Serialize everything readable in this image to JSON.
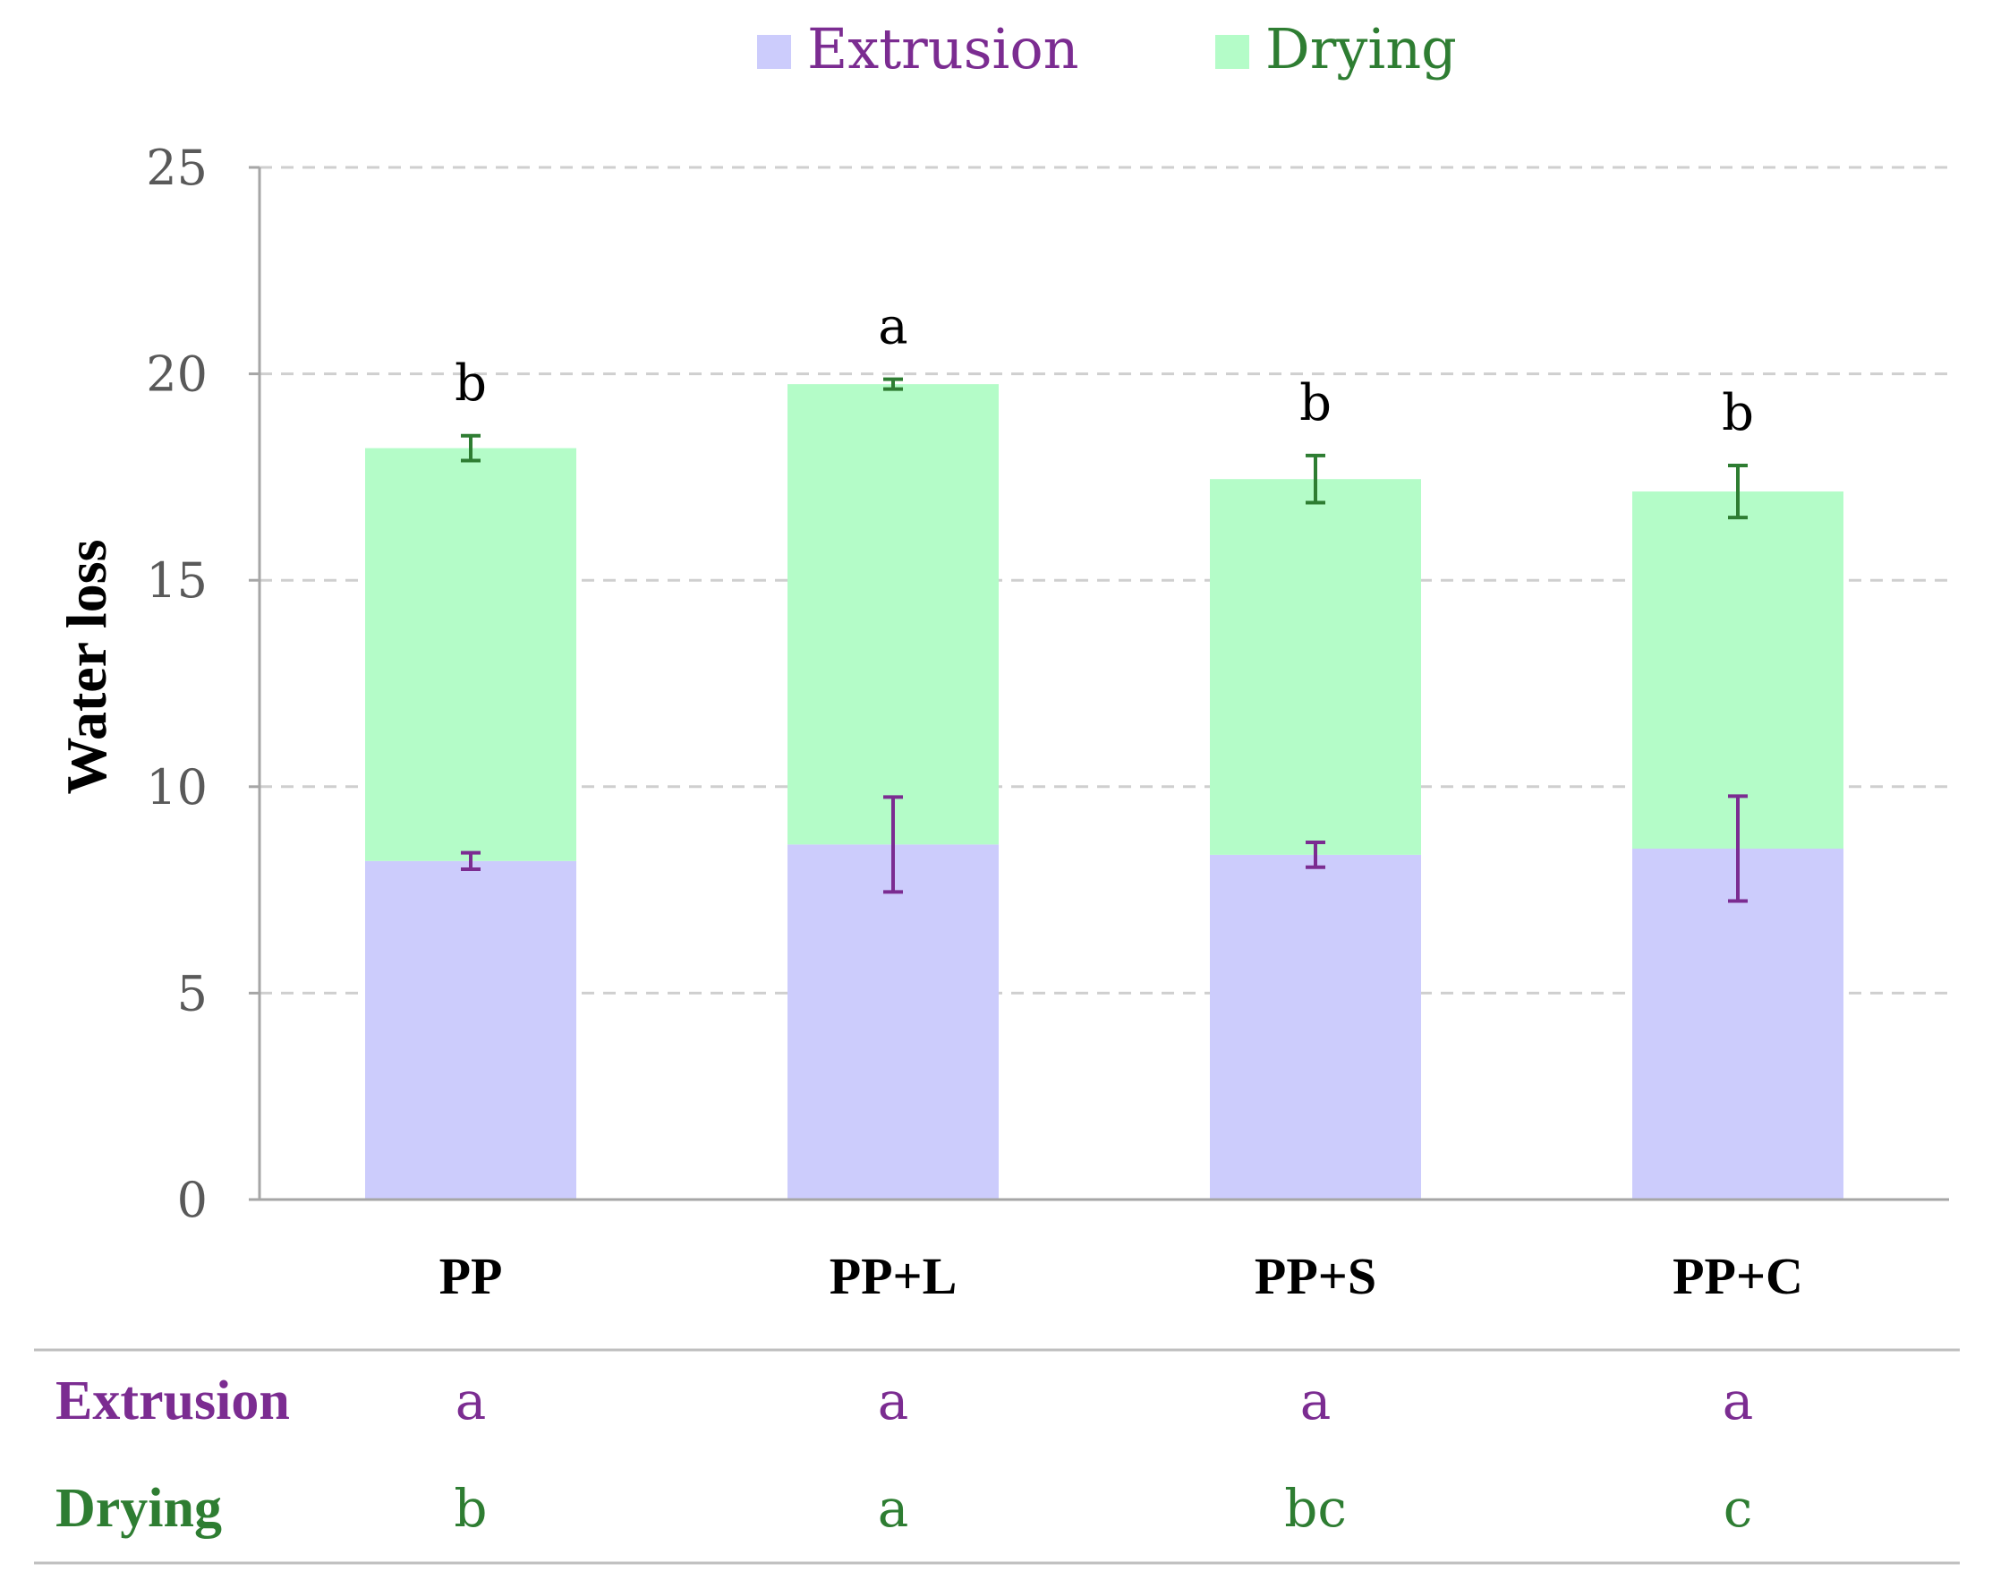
{
  "colors": {
    "extrusion": "#ccccfc",
    "drying": "#b4fcc8",
    "extrusion_text": "#7b2c91",
    "drying_text": "#2e7d32",
    "extrusion_error": "#7b2c91",
    "drying_error": "#2e7d32",
    "grid": "#cfcfcf",
    "axis": "#a6a6a6"
  },
  "legend": [
    {
      "key": "extrusion",
      "label": "Extrusion"
    },
    {
      "key": "drying",
      "label": "Drying"
    }
  ],
  "chart_data": {
    "type": "bar",
    "stacked": true,
    "categories": [
      "PP",
      "PP+L",
      "PP+S",
      "PP+C"
    ],
    "ylabel": "Water loss",
    "ylim": [
      0,
      25
    ],
    "yticks": [
      0,
      5,
      10,
      15,
      20,
      25
    ],
    "grid": true,
    "legend_position": "top",
    "series": [
      {
        "name": "Extrusion",
        "key": "extrusion",
        "values": [
          8.2,
          8.6,
          8.35,
          8.5
        ],
        "errors": [
          0.2,
          1.15,
          0.3,
          1.27
        ]
      },
      {
        "name": "Drying",
        "key": "drying",
        "values": [
          10.0,
          11.15,
          9.1,
          8.65
        ],
        "errors": [
          0.3,
          0.12,
          0.57,
          0.63
        ]
      }
    ],
    "total_letters": [
      "b",
      "a",
      "b",
      "b"
    ]
  },
  "table": {
    "rows": [
      {
        "key": "extrusion",
        "label": "Extrusion",
        "values": [
          "a",
          "a",
          "a",
          "a"
        ]
      },
      {
        "key": "drying",
        "label": "Drying",
        "values": [
          "b",
          "a",
          "bc",
          "c"
        ]
      }
    ]
  }
}
